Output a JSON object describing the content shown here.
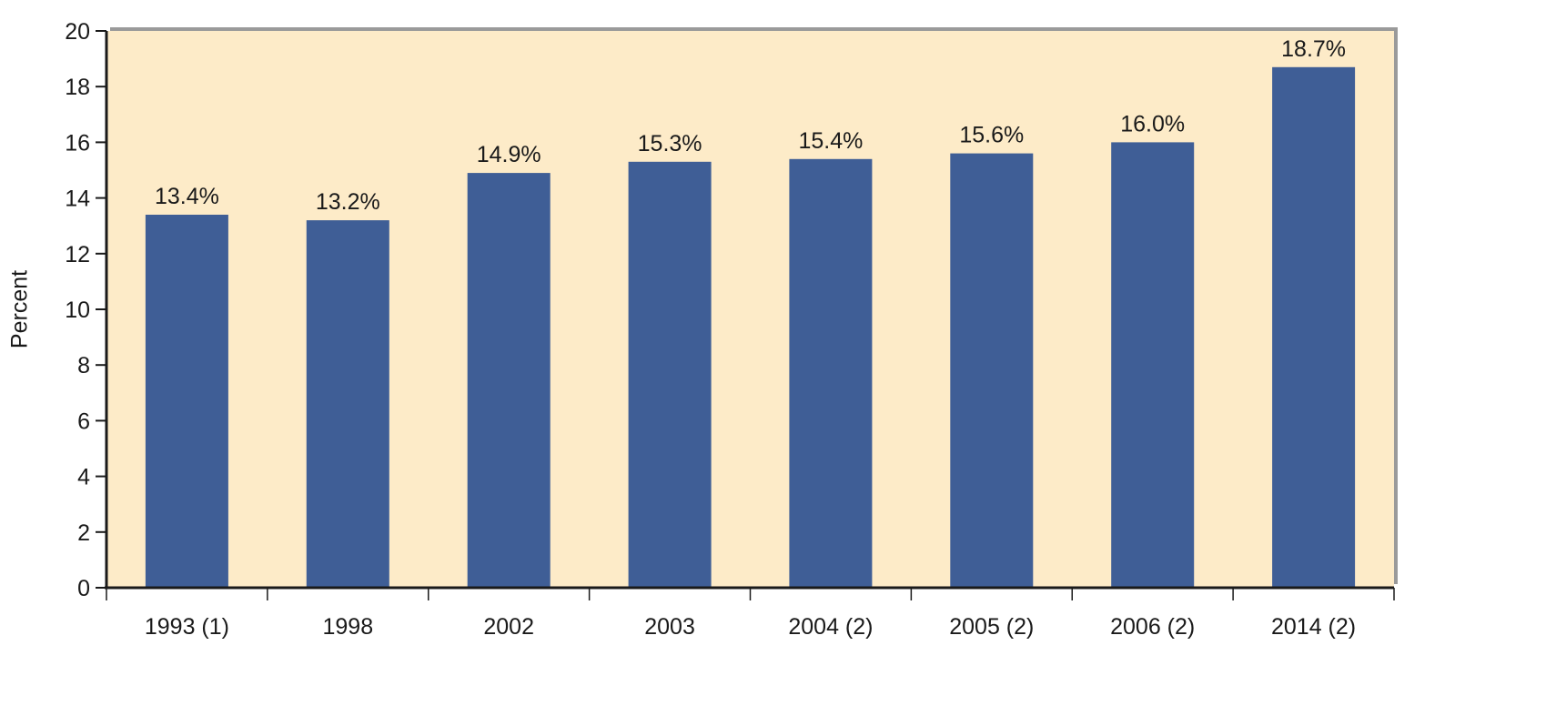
{
  "chart_data": {
    "type": "bar",
    "categories": [
      "1993 (1)",
      "1998",
      "2002",
      "2003",
      "2004 (2)",
      "2005 (2)",
      "2006 (2)",
      "2014 (2)"
    ],
    "values": [
      13.4,
      13.2,
      14.9,
      15.3,
      15.4,
      15.6,
      16.0,
      18.7
    ],
    "data_labels": [
      "13.4%",
      "13.2%",
      "14.9%",
      "15.3%",
      "15.4%",
      "15.6%",
      "16.0%",
      "18.7%"
    ],
    "title": "",
    "xlabel": "",
    "ylabel": "Percent",
    "ylim": [
      0,
      20
    ],
    "yticks": [
      0,
      2,
      4,
      6,
      8,
      10,
      12,
      14,
      16,
      18,
      20
    ],
    "grid": false,
    "legend": "none",
    "colors": {
      "bar": "#3f5e96",
      "plot_background": "#fdebc8",
      "axis": "#1a1a1a",
      "frame_shadow": "#9a9a9a"
    }
  }
}
